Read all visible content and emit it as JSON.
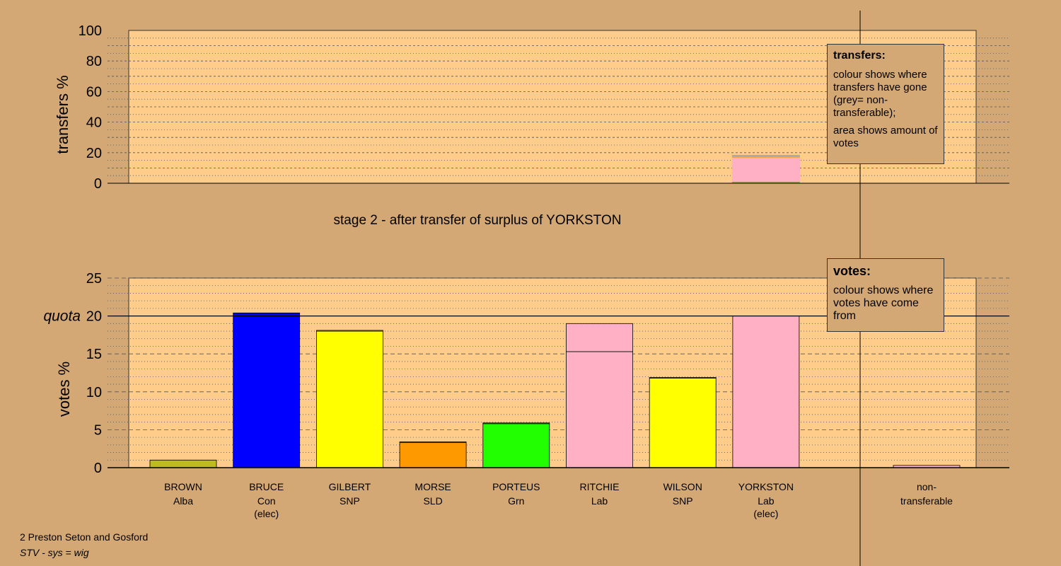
{
  "chart_data": [
    {
      "type": "bar",
      "name": "transfers",
      "ylabel": "transfers %",
      "ylim": [
        0,
        100
      ],
      "yticks": [
        0,
        20,
        40,
        60,
        80,
        100
      ],
      "stages_title": "stage 2 - after transfer of surplus of YORKSTON",
      "bars": [
        {
          "candidate": "YORKSTON",
          "segments": [
            {
              "to": "BROWN",
              "value": 0.4,
              "color": "#bcbc1c"
            },
            {
              "to": "PORTEUS",
              "value": 0.6,
              "color": "#22dd22"
            },
            {
              "to": "RITCHIE",
              "value": 16.0,
              "color": "#ffb0c4"
            },
            {
              "to": "MORSE",
              "value": 0.3,
              "color": "#ff9900"
            },
            {
              "to": "non-transferable",
              "value": 1.2,
              "color": "#aaaaaa"
            }
          ]
        }
      ]
    },
    {
      "type": "bar",
      "name": "votes",
      "ylabel": "votes %",
      "ylim": [
        0,
        25
      ],
      "yticks": [
        0,
        5,
        10,
        15,
        20,
        25
      ],
      "quota": 20,
      "quota_label": "quota",
      "candidates": [
        {
          "name": "BROWN",
          "party": "Alba",
          "status": "",
          "total": 1.0,
          "first": 1.0,
          "color": "#bcbc1c"
        },
        {
          "name": "BRUCE",
          "party": "Con",
          "status": "(elec)",
          "total": 20.4,
          "first": 20.4,
          "color": "#0000ff"
        },
        {
          "name": "GILBERT",
          "party": "SNP",
          "status": "",
          "total": 18.1,
          "first": 18.0,
          "color": "#ffff00"
        },
        {
          "name": "MORSE",
          "party": "SLD",
          "status": "",
          "total": 3.4,
          "first": 3.3,
          "color": "#ff9900"
        },
        {
          "name": "PORTEUS",
          "party": "Grn",
          "status": "",
          "total": 5.9,
          "first": 5.8,
          "color": "#22ff00"
        },
        {
          "name": "RITCHIE",
          "party": "Lab",
          "status": "",
          "total": 19.0,
          "first": 15.3,
          "color": "#ffb0c4"
        },
        {
          "name": "WILSON",
          "party": "SNP",
          "status": "",
          "total": 11.9,
          "first": 11.8,
          "color": "#ffff00"
        },
        {
          "name": "YORKSTON",
          "party": "Lab",
          "status": "(elec)",
          "total": 20.0,
          "first": 20.0,
          "color": "#ffb0c4"
        }
      ],
      "nontransferable": {
        "label_line1": "non-",
        "label_line2": "transferable",
        "value": 0.3,
        "color": "#ffb0c4"
      }
    }
  ],
  "legend_transfers": {
    "title": "transfers:",
    "line1": "colour shows where transfers have gone (grey= non-transferable);",
    "line2": "area shows amount of votes"
  },
  "legend_votes": {
    "title": "votes:",
    "line1": "colour shows where votes have come from"
  },
  "footer": {
    "constituency": "2 Preston Seton and Gosford",
    "system": "STV - sys = wig"
  },
  "colors": {
    "background": "#d4a874",
    "plot_fill": "#ffcc8a"
  }
}
